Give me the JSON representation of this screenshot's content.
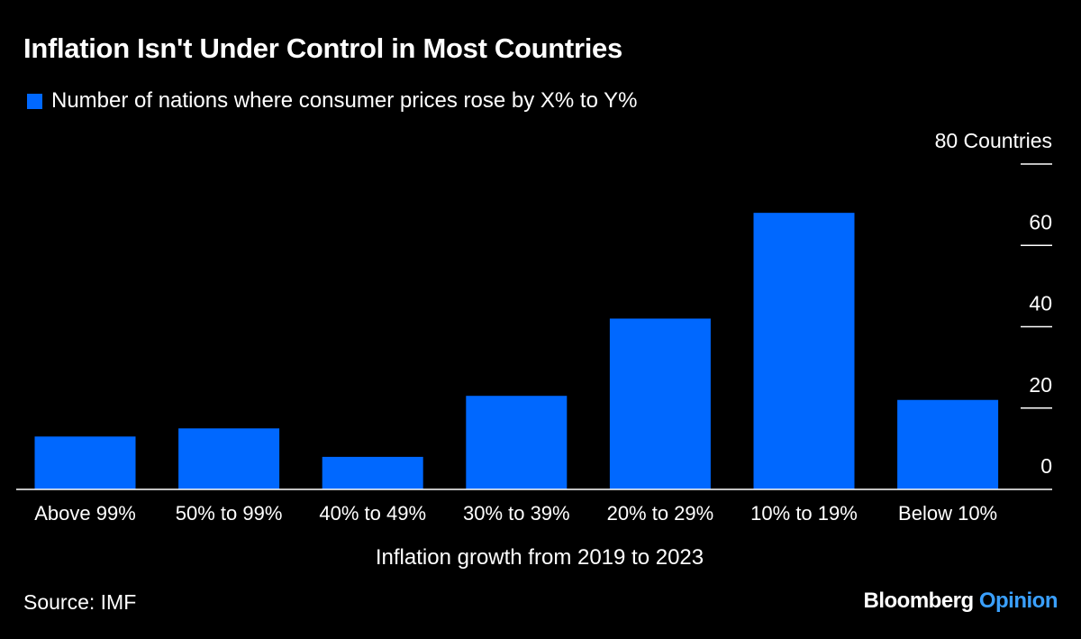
{
  "title": "Inflation Isn't Under Control in Most Countries",
  "legend_label": "Number of nations where consumer prices rose by X% to Y%",
  "source": "Source: IMF",
  "brand": {
    "name": "Bloomberg",
    "sub": "Opinion"
  },
  "colors": {
    "bar": "#0068FF",
    "background": "#000000",
    "text": "#FFFFFF",
    "opinion": "#3AA0FF"
  },
  "chart_data": {
    "type": "bar",
    "title": "Inflation Isn't Under Control in Most Countries",
    "xlabel": "Inflation growth from 2019 to 2023",
    "ylabel": "",
    "ylim": [
      0,
      80
    ],
    "yticks": [
      0,
      20,
      40,
      60,
      80
    ],
    "ytick_labels": [
      "0",
      "20",
      "40",
      "60",
      "80 Countries"
    ],
    "categories": [
      "Above 99%",
      "50% to 99%",
      "40% to 49%",
      "30% to 39%",
      "20% to 29%",
      "10% to 19%",
      "Below 10%"
    ],
    "series": [
      {
        "name": "Number of nations where consumer prices rose by X% to Y%",
        "values": [
          13,
          15,
          8,
          23,
          42,
          68,
          22
        ]
      }
    ],
    "grid": false,
    "legend": "top-left"
  }
}
